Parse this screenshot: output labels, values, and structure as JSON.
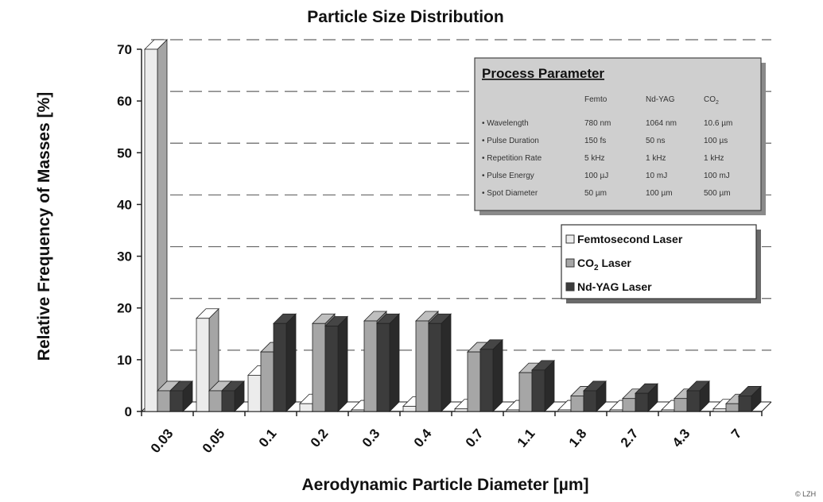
{
  "colors": {
    "femto_front": "#ececec",
    "co2_front": "#a6a6a6",
    "ndyag_front": "#3c3c3c",
    "grid": "#666666",
    "box_bg": "#cfcfcf"
  },
  "chart_data": {
    "type": "bar",
    "title": "Particle Size Distribution",
    "xlabel": "Aerodynamic Particle Diameter [µm]",
    "ylabel": "Relative Frequency of Masses [%]",
    "ylim": [
      0,
      70
    ],
    "yticks": [
      "0",
      "10",
      "20",
      "30",
      "40",
      "50",
      "60",
      "70"
    ],
    "categories": [
      "0.03",
      "0.05",
      "0.1",
      "0.2",
      "0.3",
      "0.4",
      "0.7",
      "1.1",
      "1.8",
      "2.7",
      "4.3",
      "7"
    ],
    "series": [
      {
        "name": "Femtosecond Laser",
        "values": [
          70,
          18,
          7,
          1.5,
          0.3,
          1,
          0.5,
          0.3,
          0.3,
          0.3,
          0.3,
          0.5
        ]
      },
      {
        "name": "CO2 Laser",
        "values": [
          4,
          4,
          11.5,
          17,
          17.5,
          17.5,
          11.5,
          7.5,
          3,
          2.5,
          2.5,
          1.5
        ]
      },
      {
        "name": "Nd-YAG Laser",
        "values": [
          4,
          4,
          17,
          16.5,
          17,
          17,
          12,
          8,
          4,
          3.5,
          4,
          3
        ]
      }
    ],
    "grid": "horizontal dashed",
    "legend_position": "right"
  },
  "legend": {
    "entries": [
      {
        "label_main": "Femtosecond Laser",
        "label_sub": ""
      },
      {
        "label_main": "CO",
        "label_sub": "2",
        "label_tail": " Laser"
      },
      {
        "label_main": "Nd-YAG Laser",
        "label_sub": ""
      }
    ]
  },
  "process_box": {
    "heading": "Process Parameter",
    "columns": [
      "Femto",
      "Nd-YAG",
      "CO",
      "2"
    ],
    "rows": [
      {
        "label": "• Wavelength",
        "values": [
          "780 nm",
          "1064 nm",
          "10.6 µm"
        ]
      },
      {
        "label": "• Pulse Duration",
        "values": [
          "150 fs",
          "50 ns",
          "100 µs"
        ]
      },
      {
        "label": "• Repetition Rate",
        "values": [
          "5 kHz",
          "1 kHz",
          "1 kHz"
        ]
      },
      {
        "label": "• Pulse Energy",
        "values": [
          "100 µJ",
          "10 mJ",
          "100 mJ"
        ]
      },
      {
        "label": "• Spot Diameter",
        "values": [
          "50 µm",
          "100 µm",
          "500 µm"
        ]
      }
    ]
  },
  "copyright": "© LZH"
}
